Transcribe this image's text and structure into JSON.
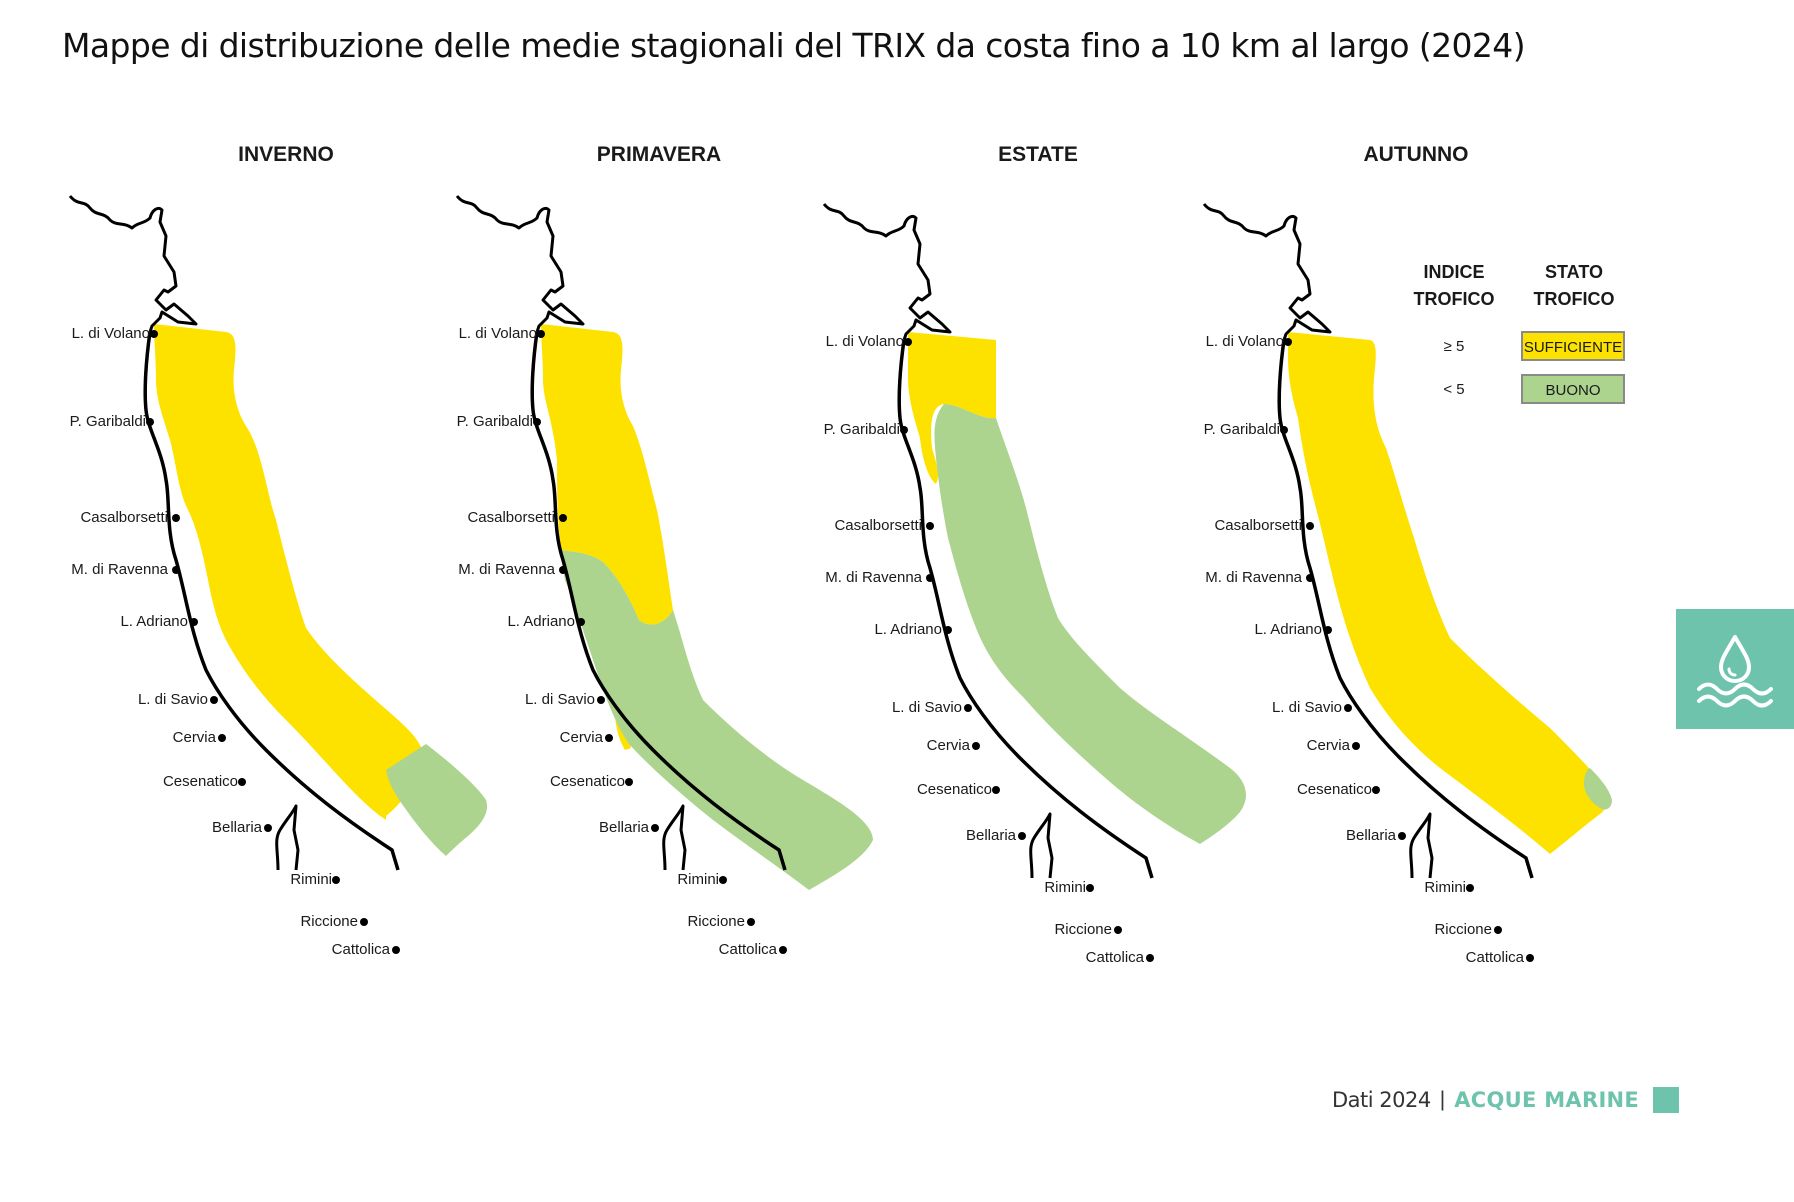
{
  "title": "Mappe di distribuzione delle medie stagionali del TRIX da costa fino a 10 km al largo (2024)",
  "colors": {
    "sufficiente": "#fde200",
    "buono": "#acd48e",
    "accent": "#6ec3ad"
  },
  "seasons": [
    {
      "name": "INVERNO",
      "status": "sufficiente everywhere, buono in the south-east offshore area"
    },
    {
      "name": "PRIMAVERA",
      "status": "sufficiente north, buono south"
    },
    {
      "name": "ESTATE",
      "status": "sufficiente north offshore, buono elsewhere"
    },
    {
      "name": "AUTUNNO",
      "status": "sufficiente everywhere, small buono patch south"
    }
  ],
  "towns": [
    "L. di Volano",
    "P. Garibaldi",
    "Casalborsetti",
    "M. di Ravenna",
    "L. Adriano",
    "L. di Savio",
    "Cervia",
    "Cesenatico",
    "Bellaria",
    "Rimini",
    "Riccione",
    "Cattolica"
  ],
  "legend": {
    "index_header_1": "INDICE",
    "index_header_2": "TROFICO",
    "state_header_1": "STATO",
    "state_header_2": "TROFICO",
    "rows": [
      {
        "index": "≥ 5",
        "state": "SUFFICIENTE",
        "color": "#fde200"
      },
      {
        "index": "< 5",
        "state": "BUONO",
        "color": "#acd48e"
      }
    ]
  },
  "side_tab": {
    "icon": "water-drop-waves-icon"
  },
  "footer": {
    "year_text": "Dati 2024",
    "separator": "|",
    "section": "ACQUE MARINE"
  }
}
